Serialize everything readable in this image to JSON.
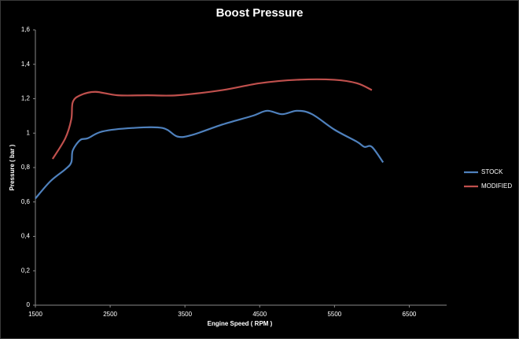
{
  "chart_data": {
    "type": "line",
    "title": "Boost Pressure",
    "x_label": "Engine Speed ( RPM )",
    "y_label": "Pressure ( bar )",
    "xlim": [
      1500,
      7000
    ],
    "xticks": [
      1500,
      2500,
      3500,
      4500,
      5500,
      6500
    ],
    "ylim": [
      0,
      1.6
    ],
    "yticks": [
      0,
      {
        "value": 0.2,
        "label": "0,2"
      },
      {
        "value": 0.4,
        "label": "0,4"
      },
      {
        "value": 0.6,
        "label": "0,6"
      },
      {
        "value": 0.8,
        "label": "0,8"
      },
      1,
      {
        "value": 1.2,
        "label": "1,2"
      },
      {
        "value": 1.4,
        "label": "1,4"
      },
      {
        "value": 1.6,
        "label": "1,6"
      }
    ],
    "grid": false,
    "legend": "right",
    "series": [
      {
        "name": "STOCK",
        "color": "#4f81bd",
        "x": [
          1500,
          1700,
          1900,
          1980,
          2000,
          2100,
          2200,
          2400,
          2800,
          3200,
          3400,
          3600,
          4000,
          4400,
          4600,
          4800,
          5000,
          5200,
          5500,
          5800,
          5900,
          6000,
          6150
        ],
        "values": [
          0.62,
          0.72,
          0.79,
          0.83,
          0.9,
          0.96,
          0.97,
          1.01,
          1.03,
          1.03,
          0.98,
          0.99,
          1.05,
          1.1,
          1.13,
          1.11,
          1.13,
          1.11,
          1.02,
          0.95,
          0.92,
          0.92,
          0.83
        ]
      },
      {
        "name": "MODIFIED",
        "color": "#c0504d",
        "x": [
          1730,
          1900,
          1980,
          2000,
          2100,
          2300,
          2600,
          3000,
          3400,
          4000,
          4500,
          5000,
          5500,
          5800,
          6000
        ],
        "values": [
          0.85,
          0.97,
          1.08,
          1.18,
          1.22,
          1.24,
          1.22,
          1.22,
          1.22,
          1.25,
          1.29,
          1.31,
          1.31,
          1.29,
          1.25
        ]
      }
    ]
  }
}
